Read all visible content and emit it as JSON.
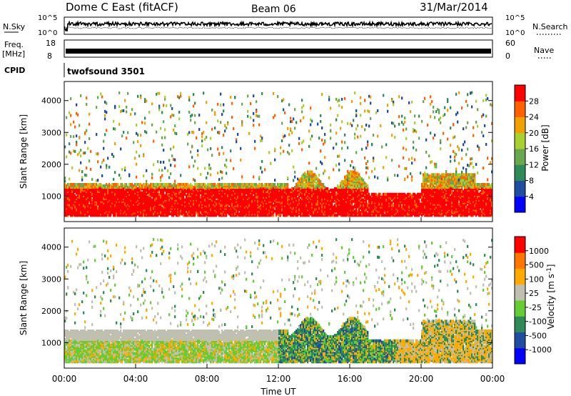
{
  "header": {
    "station": "Dome C East (fitACF)",
    "beam": "Beam 06",
    "date": "31/Mar/2014"
  },
  "top_panels": {
    "nsky_label": "N.Sky",
    "nsky_ticks": [
      "10^5",
      "10^0"
    ],
    "nsearch_label": "N.Search",
    "nsearch_ticks": [
      "10^5",
      "10^0"
    ],
    "freq_label_1": "Freq.",
    "freq_label_2": "[MHz]",
    "freq_ticks": [
      "18",
      "8"
    ],
    "nave_label": "Nave",
    "nave_ticks": [
      "60",
      "0"
    ],
    "cpid_label": "CPID",
    "cpid_value": "twofsound 3501"
  },
  "chart_data": [
    {
      "type": "heatmap",
      "title": "Power",
      "ylabel": "Slant Range [km]",
      "xlabel": "",
      "ylim": [
        200,
        4600
      ],
      "yticks": [
        "1000",
        "2000",
        "3000",
        "4000"
      ],
      "colorbar_label": "Power [dB]",
      "colorbar_ticks": [
        "28",
        "24",
        "20",
        "16",
        "12",
        "8",
        "4"
      ],
      "colors": [
        "#0000ff",
        "#1f4ea0",
        "#2e8b57",
        "#6aa84f",
        "#a8d030",
        "#f0a000",
        "#ff6000",
        "#ff0000"
      ]
    },
    {
      "type": "heatmap",
      "title": "Velocity",
      "ylabel": "Slant Range [km]",
      "xlabel": "Time UT",
      "ylim": [
        200,
        4600
      ],
      "xticks": [
        "00:00",
        "04:00",
        "08:00",
        "12:00",
        "16:00",
        "20:00",
        "00:00"
      ],
      "yticks": [
        "1000",
        "2000",
        "3000",
        "4000"
      ],
      "colorbar_label": "Velocity [m s^-1]",
      "colorbar_ticks": [
        "1000",
        "500",
        "100",
        "25",
        "-25",
        "-100",
        "-500",
        "-1000"
      ],
      "colors": [
        "#0000ff",
        "#1f4ea0",
        "#2e8b57",
        "#66cc33",
        "#c0c0b0",
        "#ffaa00",
        "#ff7700",
        "#ff0000"
      ]
    }
  ]
}
